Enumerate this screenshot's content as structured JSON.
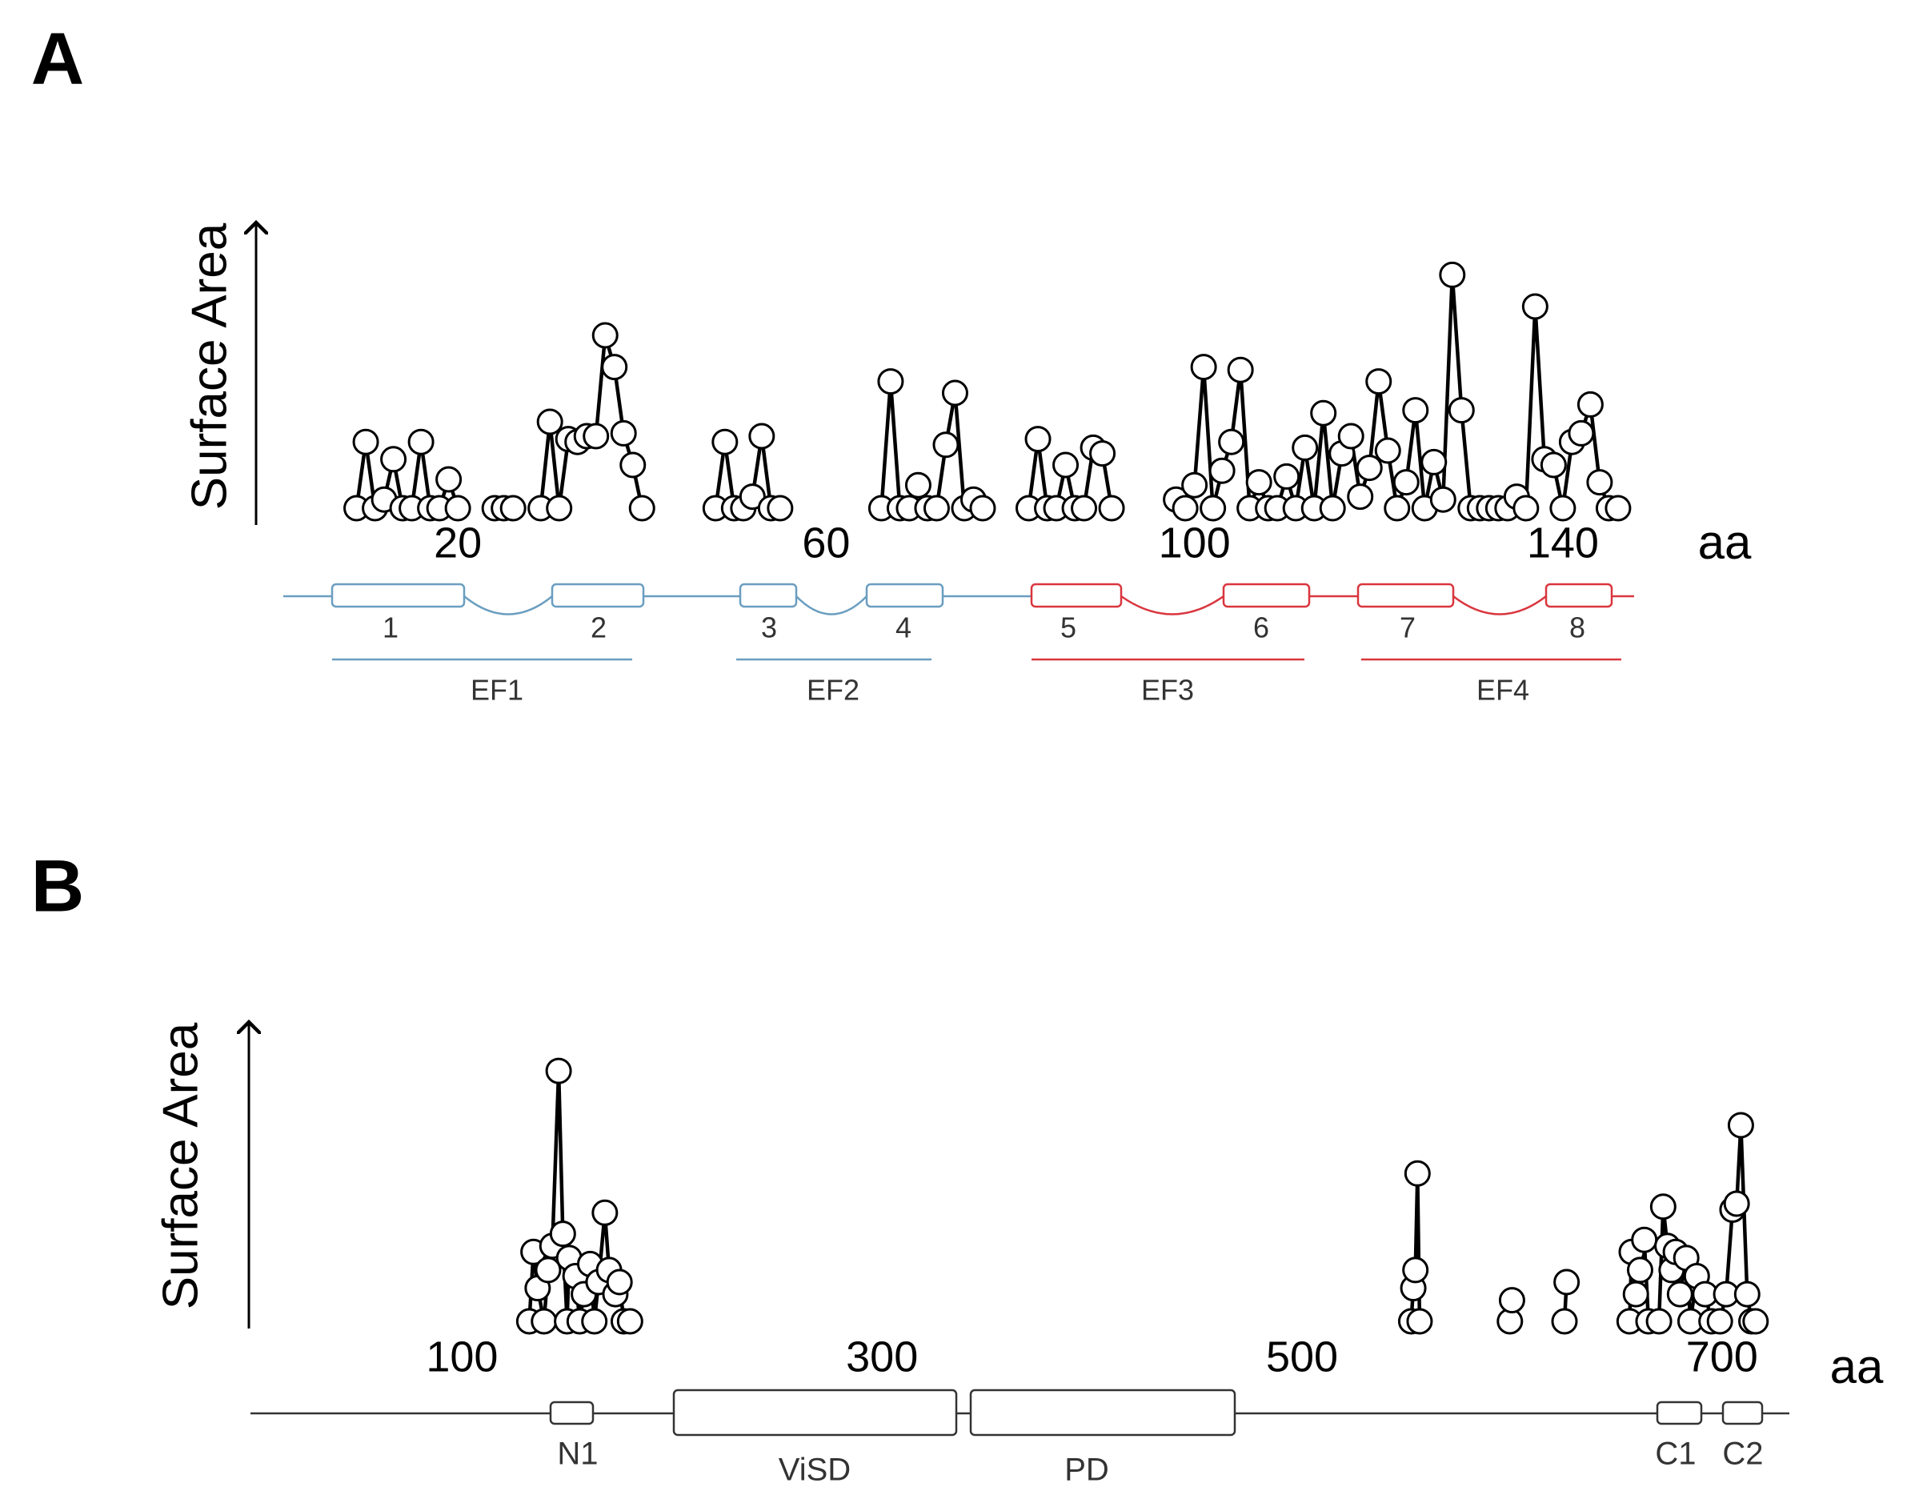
{
  "chart_data": [
    {
      "type": "line",
      "panel": "A",
      "y_label": "Surface Area",
      "x_unit": "aa",
      "color": "#000000",
      "xlim": [
        0,
        160
      ],
      "xticks": [
        20,
        60,
        100,
        140
      ],
      "ylim": [
        0,
        100
      ],
      "x": [
        9,
        10,
        11,
        12,
        13,
        14,
        15,
        16,
        17,
        18,
        19,
        20,
        22,
        24,
        25,
        26,
        27,
        29,
        30,
        31,
        32,
        33,
        34,
        35,
        36,
        37,
        38,
        39,
        40,
        44,
        48,
        49,
        50,
        51,
        52,
        53,
        54,
        55,
        60,
        66,
        67,
        68,
        69,
        70,
        71,
        72,
        73,
        74,
        75,
        76,
        77,
        79,
        82,
        83,
        84,
        85,
        86,
        87,
        88,
        89,
        90,
        91,
        94,
        98,
        99,
        100,
        101,
        102,
        103,
        104,
        105,
        106,
        107,
        108,
        109,
        110,
        111,
        112,
        113,
        114,
        115,
        116,
        117,
        118,
        119,
        120,
        121,
        122,
        123,
        124,
        125,
        126,
        127,
        128,
        129,
        130,
        131,
        132,
        133,
        134,
        135,
        136,
        137,
        138,
        139,
        140,
        141,
        142,
        143,
        144,
        145,
        146
      ],
      "values": [
        0,
        23,
        0,
        3,
        17,
        0,
        0,
        23,
        0,
        0,
        10,
        0,
        null,
        0,
        0,
        0,
        null,
        0,
        30,
        0,
        24,
        23,
        25,
        25,
        60,
        49,
        26,
        15,
        0,
        null,
        0,
        23,
        0,
        0,
        4,
        25,
        0,
        0,
        null,
        0,
        44,
        0,
        0,
        8,
        0,
        0,
        22,
        40,
        0,
        3,
        0,
        null,
        0,
        24,
        0,
        0,
        15,
        0,
        0,
        21,
        19,
        0,
        null,
        3,
        0,
        8,
        49,
        0,
        13,
        23,
        48,
        0,
        9,
        0,
        0,
        11,
        0,
        21,
        0,
        33,
        0,
        19,
        25,
        4,
        14,
        44,
        20,
        0,
        9,
        34,
        0,
        16,
        3,
        81,
        34,
        0,
        0,
        0,
        0,
        0,
        4,
        0,
        70,
        17,
        15,
        0,
        23,
        26,
        36,
        9,
        0,
        0
      ],
      "helices": [
        "1",
        "2",
        "3",
        "4",
        "5",
        "6",
        "7",
        "8"
      ],
      "ef_hands": [
        "EF1",
        "EF2",
        "EF3",
        "EF4"
      ]
    },
    {
      "type": "line",
      "panel": "B",
      "y_label": "Surface Area",
      "x_unit": "aa",
      "color": "#000000",
      "xlim": [
        0,
        750
      ],
      "xticks": [
        100,
        300,
        500,
        700
      ],
      "ylim": [
        0,
        100
      ],
      "x": [
        132,
        134,
        136,
        139,
        141,
        143,
        146,
        148,
        150,
        151,
        154,
        156,
        158,
        161,
        163,
        165,
        168,
        170,
        173,
        175,
        177,
        180,
        360,
        552,
        553,
        554,
        555,
        556,
        580,
        599,
        600,
        612,
        625,
        626,
        640,
        656,
        657,
        659,
        661,
        663,
        665,
        670,
        672,
        674,
        676,
        678,
        680,
        683,
        685,
        688,
        692,
        695,
        699,
        702,
        705,
        707,
        709,
        712,
        714,
        716
      ],
      "values": [
        0,
        23,
        11,
        0,
        17,
        25,
        83,
        29,
        0,
        21,
        15,
        0,
        9,
        19,
        0,
        13,
        36,
        17,
        9,
        13,
        0,
        0,
        null,
        0,
        11,
        17,
        49,
        0,
        null,
        0,
        7,
        null,
        0,
        13,
        null,
        0,
        23,
        9,
        17,
        27,
        0,
        0,
        38,
        25,
        17,
        23,
        9,
        21,
        0,
        15,
        9,
        0,
        0,
        9,
        37,
        39,
        65,
        9,
        0,
        0
      ],
      "domains": [
        "N1",
        "ViSD",
        "PD",
        "C1",
        "C2"
      ]
    }
  ]
}
